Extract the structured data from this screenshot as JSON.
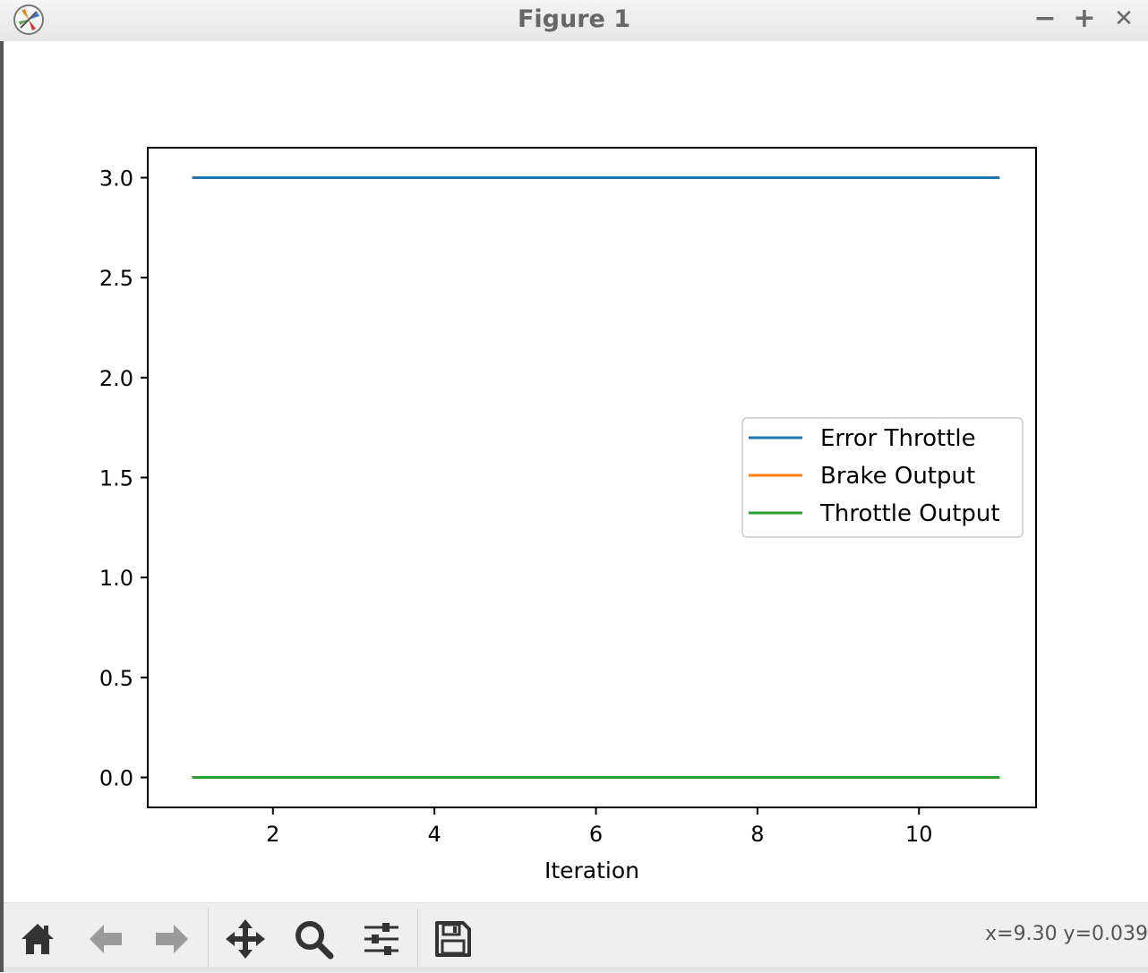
{
  "window": {
    "title": "Figure 1",
    "minimize_glyph": "−",
    "maximize_glyph": "+",
    "close_glyph": "✕",
    "app_icon": "matplotlib-icon"
  },
  "toolbar": {
    "buttons": [
      {
        "name": "home",
        "icon": "home-icon"
      },
      {
        "name": "back",
        "icon": "arrow-left-icon"
      },
      {
        "name": "forward",
        "icon": "arrow-right-icon"
      },
      {
        "name": "pan",
        "icon": "move-icon"
      },
      {
        "name": "zoom",
        "icon": "magnifier-icon"
      },
      {
        "name": "configure-subplots",
        "icon": "sliders-icon"
      },
      {
        "name": "save",
        "icon": "floppy-disk-icon"
      }
    ],
    "coordinates": "x=9.30 y=0.039"
  },
  "chart_data": {
    "type": "line",
    "title": "",
    "xlabel": "Iteration",
    "ylabel": "",
    "xlim": [
      0.45,
      11.45
    ],
    "ylim": [
      -0.15,
      3.15
    ],
    "xticks": [
      2,
      4,
      6,
      8,
      10
    ],
    "xtick_labels": [
      "2",
      "4",
      "6",
      "8",
      "10"
    ],
    "yticks": [
      0.0,
      0.5,
      1.0,
      1.5,
      2.0,
      2.5,
      3.0
    ],
    "ytick_labels": [
      "0.0",
      "0.5",
      "1.0",
      "1.5",
      "2.0",
      "2.5",
      "3.0"
    ],
    "grid": false,
    "legend_position": "center-right",
    "x": [
      1,
      2,
      3,
      4,
      5,
      6,
      7,
      8,
      9,
      10,
      11
    ],
    "series": [
      {
        "name": "Error Throttle",
        "color": "#1f77b4",
        "values": [
          3,
          3,
          3,
          3,
          3,
          3,
          3,
          3,
          3,
          3,
          3
        ]
      },
      {
        "name": "Brake Output",
        "color": "#ff7f0e",
        "values": [
          0,
          0,
          0,
          0,
          0,
          0,
          0,
          0,
          0,
          0,
          0
        ]
      },
      {
        "name": "Throttle Output",
        "color": "#2ca02c",
        "values": [
          0,
          0,
          0,
          0,
          0,
          0,
          0,
          0,
          0,
          0,
          0
        ]
      }
    ]
  }
}
